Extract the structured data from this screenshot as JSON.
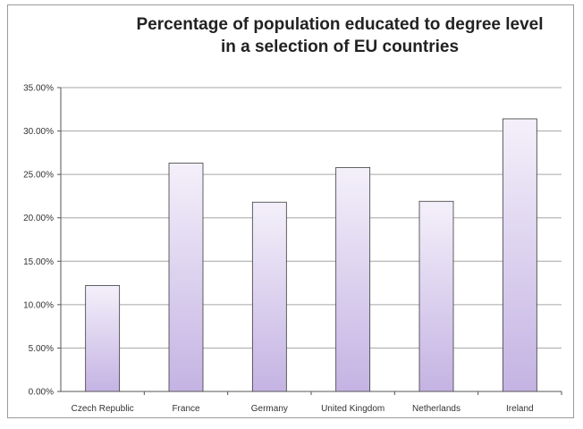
{
  "chart_data": {
    "type": "bar",
    "title_line1": "Percentage of population educated to degree level",
    "title_line2": "in a selection of EU countries",
    "categories": [
      "Czech Republic",
      "France",
      "Germany",
      "United Kingdom",
      "Netherlands",
      "Ireland"
    ],
    "values": [
      12.2,
      26.3,
      21.8,
      25.8,
      21.9,
      31.4
    ],
    "value_format": "percent",
    "ylim": [
      0,
      35
    ],
    "yticks": [
      "0.00%",
      "5.00%",
      "10.00%",
      "15.00%",
      "20.00%",
      "25.00%",
      "30.00%",
      "35.00%"
    ],
    "ytick_values": [
      0,
      5,
      10,
      15,
      20,
      25,
      30,
      35
    ],
    "grid": true,
    "legend": "none",
    "colors": {
      "bar_top": "#f4f0fa",
      "bar_bottom": "#c4b3e3",
      "bar_stroke": "#3a3a3a",
      "grid": "#a6a6a6",
      "axis": "#555555"
    }
  }
}
